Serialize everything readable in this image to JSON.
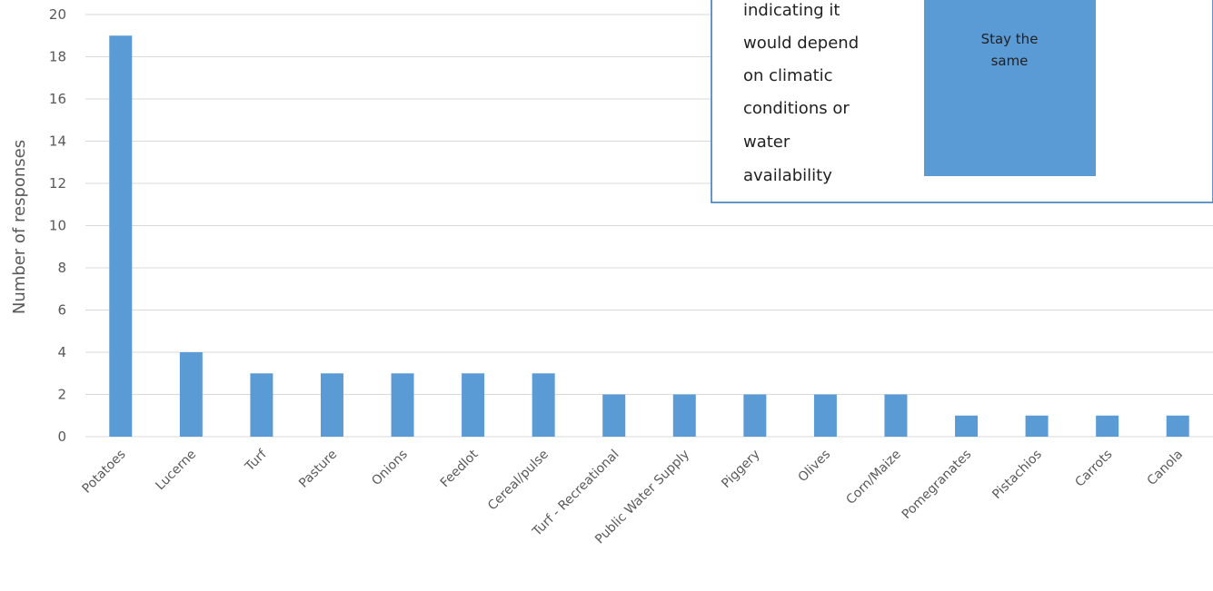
{
  "chart_data": {
    "type": "bar",
    "ylabel": "Number of responses",
    "xlabel": "",
    "ylim": [
      0,
      20
    ],
    "yticks": [
      0,
      2,
      4,
      6,
      8,
      10,
      12,
      14,
      16,
      18,
      20
    ],
    "grid": true,
    "bar_color": "#5B9BD5",
    "categories": [
      "Potatoes",
      "Lucerne",
      "Turf",
      "Pasture",
      "Onions",
      "Feedlot",
      "Cereal/pulse",
      "Turf - Recreational",
      "Public Water Supply",
      "Piggery",
      "Olives",
      "Corn/Maize",
      "Pomegranates",
      "Pistachios",
      "Carrots",
      "Canola"
    ],
    "values": [
      19,
      4,
      3,
      3,
      3,
      3,
      3,
      2,
      2,
      2,
      2,
      2,
      1,
      1,
      1,
      1
    ]
  },
  "overlay": {
    "note_lines": [
      "indicating it",
      "would depend",
      "on climatic",
      "conditions or",
      "water",
      "availability"
    ],
    "box_lines": [
      "Stay the",
      "same"
    ],
    "box_color": "#5B9BD5",
    "note_border_color": "#2E75B6"
  }
}
